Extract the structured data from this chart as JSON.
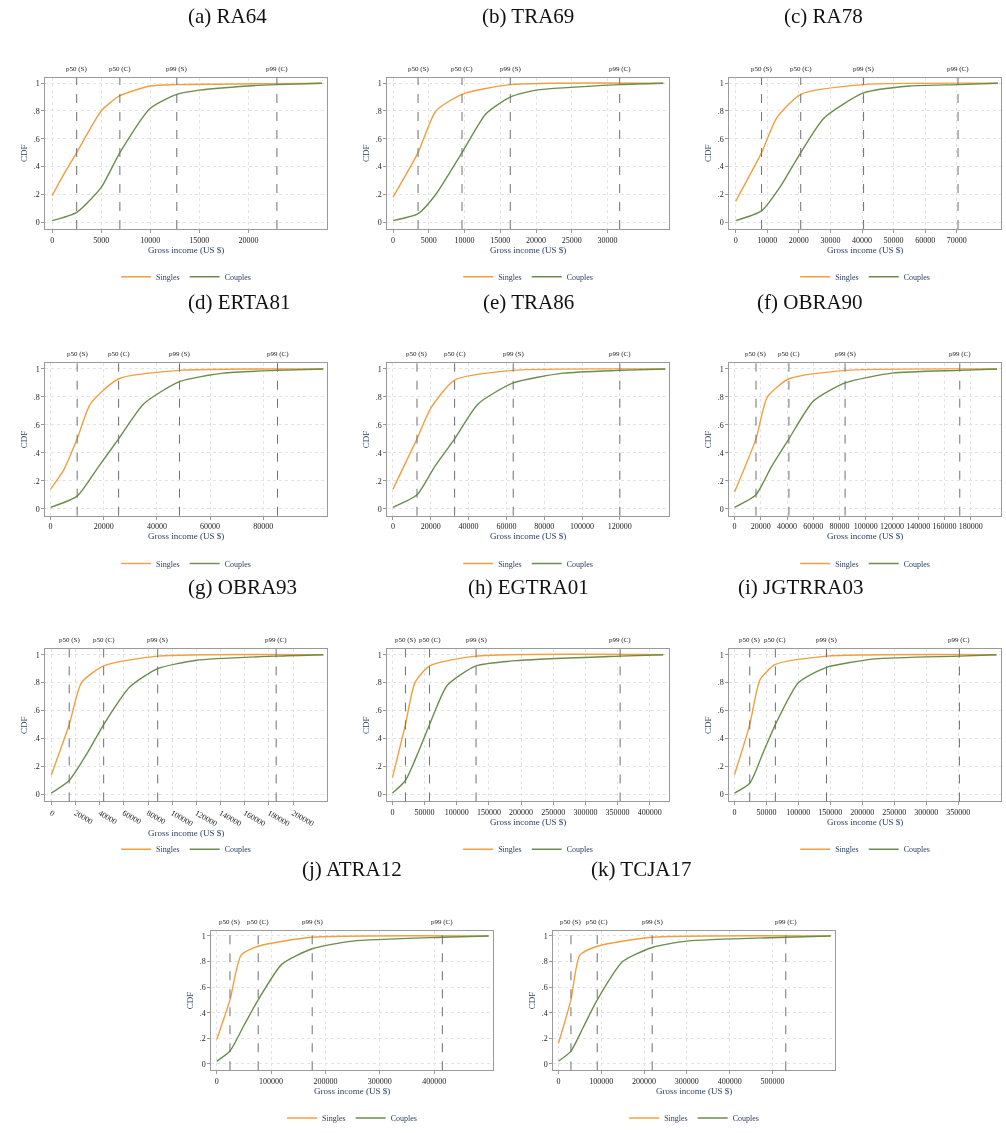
{
  "chart_data": [
    {
      "type": "line",
      "title": "(a) RA64",
      "xlabel": "Gross income (US $)",
      "ylabel": "CDF",
      "grid": true,
      "legend": "bottom",
      "xlim": [
        -700,
        28000
      ],
      "xticks": [
        0,
        5000,
        10000,
        15000,
        20000
      ],
      "ylim": [
        -0.05,
        1.04
      ],
      "yticks": [
        0,
        {
          "value": 0.2,
          "label": ".2"
        },
        {
          "value": 0.4,
          "label": ".4"
        },
        {
          "value": 0.6,
          "label": ".6"
        },
        {
          "value": 0.8,
          "label": ".8"
        },
        1
      ],
      "series": [
        {
          "name": "Singles",
          "color": "#f0a040",
          "x": [
            0,
            1000,
            2500,
            5000,
            6900,
            10000,
            12700,
            27500
          ],
          "values": [
            0.19,
            0.32,
            0.5,
            0.8,
            0.91,
            0.98,
            0.99,
            1
          ]
        },
        {
          "name": "Couples",
          "color": "#6b8e4e",
          "x": [
            0,
            2500,
            5000,
            6900,
            10000,
            12700,
            15000,
            20000,
            22900,
            27500
          ],
          "values": [
            0.01,
            0.07,
            0.25,
            0.5,
            0.82,
            0.92,
            0.95,
            0.98,
            0.99,
            1
          ]
        }
      ],
      "ref_lines": [
        {
          "axis": "x",
          "value": 2500,
          "label": "p50 (S)",
          "color": "#707070",
          "line_style": "dashed"
        },
        {
          "axis": "x",
          "value": 6900,
          "label": "p50 (C)",
          "color": "#707070",
          "line_style": "dashed"
        },
        {
          "axis": "x",
          "value": 12700,
          "label": "p99 (S)",
          "color": "#707070",
          "line_style": "dashed"
        },
        {
          "axis": "x",
          "value": 22900,
          "label": "p99 (C)",
          "color": "#707070",
          "line_style": "dashed"
        }
      ]
    },
    {
      "type": "line",
      "title": "(b) TRA69",
      "xlabel": "Gross income (US $)",
      "ylabel": "CDF",
      "grid": true,
      "legend": "bottom",
      "xlim": [
        -800,
        38600
      ],
      "xticks": [
        0,
        5000,
        10000,
        15000,
        20000,
        25000,
        30000
      ],
      "ylim": [
        -0.05,
        1.04
      ],
      "yticks": [
        0,
        {
          "value": 0.2,
          "label": ".2"
        },
        {
          "value": 0.4,
          "label": ".4"
        },
        {
          "value": 0.6,
          "label": ".6"
        },
        {
          "value": 0.8,
          "label": ".8"
        },
        1
      ],
      "series": [
        {
          "name": "Singles",
          "color": "#f0a040",
          "x": [
            0,
            3500,
            6000,
            9650,
            16400,
            37800
          ],
          "values": [
            0.18,
            0.5,
            0.8,
            0.92,
            0.99,
            1
          ]
        },
        {
          "name": "Couples",
          "color": "#6b8e4e",
          "x": [
            0,
            3500,
            6000,
            9650,
            13000,
            16400,
            20000,
            31700,
            37800
          ],
          "values": [
            0.01,
            0.06,
            0.2,
            0.5,
            0.78,
            0.9,
            0.95,
            0.99,
            1
          ]
        }
      ],
      "ref_lines": [
        {
          "axis": "x",
          "value": 3500,
          "label": "p50 (S)",
          "color": "#707070",
          "line_style": "dashed"
        },
        {
          "axis": "x",
          "value": 9650,
          "label": "p50 (C)",
          "color": "#707070",
          "line_style": "dashed"
        },
        {
          "axis": "x",
          "value": 16400,
          "label": "p99 (S)",
          "color": "#707070",
          "line_style": "dashed"
        },
        {
          "axis": "x",
          "value": 31700,
          "label": "p99 (C)",
          "color": "#707070",
          "line_style": "dashed"
        }
      ]
    },
    {
      "type": "line",
      "title": "(c) RA78",
      "xlabel": "Gross income (US $)",
      "ylabel": "CDF",
      "grid": true,
      "legend": "bottom",
      "xlim": [
        -2000,
        84000
      ],
      "xticks": [
        0,
        10000,
        20000,
        30000,
        40000,
        50000,
        60000,
        70000
      ],
      "ylim": [
        -0.05,
        1.04
      ],
      "yticks": [
        0,
        {
          "value": 0.2,
          "label": ".2"
        },
        {
          "value": 0.4,
          "label": ".4"
        },
        {
          "value": 0.6,
          "label": ".6"
        },
        {
          "value": 0.8,
          "label": ".8"
        },
        1
      ],
      "series": [
        {
          "name": "Singles",
          "color": "#f0a040",
          "x": [
            0,
            8200,
            13000,
            20600,
            40500,
            83000
          ],
          "values": [
            0.15,
            0.5,
            0.75,
            0.92,
            0.99,
            1
          ]
        },
        {
          "name": "Couples",
          "color": "#6b8e4e",
          "x": [
            0,
            8200,
            14000,
            20600,
            28000,
            40500,
            55000,
            70400,
            83000
          ],
          "values": [
            0.01,
            0.08,
            0.25,
            0.5,
            0.75,
            0.93,
            0.98,
            0.99,
            1
          ]
        }
      ],
      "ref_lines": [
        {
          "axis": "x",
          "value": 8200,
          "label": "p50 (S)",
          "color": "#707070",
          "line_style": "dashed"
        },
        {
          "axis": "x",
          "value": 20600,
          "label": "p50 (C)",
          "color": "#707070",
          "line_style": "dashed"
        },
        {
          "axis": "x",
          "value": 40500,
          "label": "p99 (S)",
          "color": "#707070",
          "line_style": "dashed"
        },
        {
          "axis": "x",
          "value": 70400,
          "label": "p99 (C)",
          "color": "#707070",
          "line_style": "dashed"
        }
      ]
    },
    {
      "type": "line",
      "title": "(d) ERTA81",
      "xlabel": "Gross income (US $)",
      "ylabel": "CDF",
      "grid": true,
      "legend": "bottom",
      "xlim": [
        -2000,
        104000
      ],
      "xticks": [
        0,
        20000,
        40000,
        60000,
        80000
      ],
      "ylim": [
        -0.05,
        1.04
      ],
      "yticks": [
        0,
        {
          "value": 0.2,
          "label": ".2"
        },
        {
          "value": 0.4,
          "label": ".4"
        },
        {
          "value": 0.6,
          "label": ".6"
        },
        {
          "value": 0.8,
          "label": ".8"
        },
        1
      ],
      "series": [
        {
          "name": "Singles",
          "color": "#f0a040",
          "x": [
            0,
            5000,
            10000,
            15000,
            25600,
            48500,
            102600
          ],
          "values": [
            0.14,
            0.28,
            0.5,
            0.75,
            0.93,
            0.99,
            1
          ]
        },
        {
          "name": "Couples",
          "color": "#6b8e4e",
          "x": [
            0,
            10000,
            18000,
            25600,
            35000,
            48500,
            65000,
            85400,
            102600
          ],
          "values": [
            0.01,
            0.09,
            0.3,
            0.5,
            0.75,
            0.91,
            0.97,
            0.99,
            1
          ]
        }
      ],
      "ref_lines": [
        {
          "axis": "x",
          "value": 10000,
          "label": "p50 (S)",
          "color": "#707070",
          "line_style": "dashed"
        },
        {
          "axis": "x",
          "value": 25600,
          "label": "p50 (C)",
          "color": "#707070",
          "line_style": "dashed"
        },
        {
          "axis": "x",
          "value": 48500,
          "label": "p99 (S)",
          "color": "#707070",
          "line_style": "dashed"
        },
        {
          "axis": "x",
          "value": 85400,
          "label": "p99 (C)",
          "color": "#707070",
          "line_style": "dashed"
        }
      ]
    },
    {
      "type": "line",
      "title": "(e) TRA86",
      "xlabel": "Gross income (US $)",
      "ylabel": "CDF",
      "grid": true,
      "legend": "bottom",
      "xlim": [
        -3000,
        146000
      ],
      "xticks": [
        0,
        20000,
        40000,
        60000,
        80000,
        100000,
        120000
      ],
      "ylim": [
        -0.05,
        1.04
      ],
      "yticks": [
        0,
        {
          "value": 0.2,
          "label": ".2"
        },
        {
          "value": 0.4,
          "label": ".4"
        },
        {
          "value": 0.6,
          "label": ".6"
        },
        {
          "value": 0.8,
          "label": ".8"
        },
        1
      ],
      "series": [
        {
          "name": "Singles",
          "color": "#f0a040",
          "x": [
            0,
            12700,
            20000,
            32600,
            63600,
            144000
          ],
          "values": [
            0.14,
            0.5,
            0.72,
            0.92,
            0.99,
            1
          ]
        },
        {
          "name": "Couples",
          "color": "#6b8e4e",
          "x": [
            0,
            12700,
            22000,
            32600,
            45000,
            63600,
            90000,
            120000,
            144000
          ],
          "values": [
            0.01,
            0.1,
            0.3,
            0.5,
            0.75,
            0.9,
            0.97,
            0.99,
            1
          ]
        }
      ],
      "ref_lines": [
        {
          "axis": "x",
          "value": 12700,
          "label": "p50 (S)",
          "color": "#707070",
          "line_style": "dashed"
        },
        {
          "axis": "x",
          "value": 32600,
          "label": "p50 (C)",
          "color": "#707070",
          "line_style": "dashed"
        },
        {
          "axis": "x",
          "value": 63600,
          "label": "p99 (S)",
          "color": "#707070",
          "line_style": "dashed"
        },
        {
          "axis": "x",
          "value": 120000,
          "label": "p99 (C)",
          "color": "#707070",
          "line_style": "dashed"
        }
      ]
    },
    {
      "type": "line",
      "title": "(f) OBRA90",
      "xlabel": "Gross income (US $)",
      "ylabel": "CDF",
      "grid": true,
      "legend": "bottom",
      "xlim": [
        -4000,
        203000
      ],
      "xticks": [
        0,
        20000,
        40000,
        60000,
        80000,
        100000,
        120000,
        140000,
        160000,
        180000
      ],
      "ylim": [
        -0.05,
        1.04
      ],
      "yticks": [
        0,
        {
          "value": 0.2,
          "label": ".2"
        },
        {
          "value": 0.4,
          "label": ".4"
        },
        {
          "value": 0.6,
          "label": ".6"
        },
        {
          "value": 0.8,
          "label": ".8"
        },
        1
      ],
      "series": [
        {
          "name": "Singles",
          "color": "#f0a040",
          "x": [
            0,
            16300,
            25000,
            41400,
            84200,
            200000
          ],
          "values": [
            0.12,
            0.5,
            0.8,
            0.93,
            0.99,
            1
          ]
        },
        {
          "name": "Couples",
          "color": "#6b8e4e",
          "x": [
            0,
            16300,
            28000,
            41400,
            60000,
            84200,
            120000,
            171600,
            200000
          ],
          "values": [
            0.01,
            0.1,
            0.3,
            0.5,
            0.77,
            0.9,
            0.97,
            0.99,
            1
          ]
        }
      ],
      "ref_lines": [
        {
          "axis": "x",
          "value": 16300,
          "label": "p50 (S)",
          "color": "#707070",
          "line_style": "dashed"
        },
        {
          "axis": "x",
          "value": 41400,
          "label": "p50 (C)",
          "color": "#707070",
          "line_style": "dashed"
        },
        {
          "axis": "x",
          "value": 84200,
          "label": "p99 (S)",
          "color": "#707070",
          "line_style": "dashed"
        },
        {
          "axis": "x",
          "value": 171600,
          "label": "p99 (C)",
          "color": "#707070",
          "line_style": "dashed"
        }
      ]
    },
    {
      "type": "line",
      "title": "(g) OBRA93",
      "xlabel": "Gross income (US $)",
      "ylabel": "CDF",
      "grid": true,
      "legend": "bottom",
      "xlim": [
        -5000,
        228000
      ],
      "xticks": [
        0,
        20000,
        40000,
        60000,
        80000,
        100000,
        120000,
        140000,
        160000,
        180000,
        200000
      ],
      "ylim": [
        -0.05,
        1.04
      ],
      "yticks": [
        0,
        {
          "value": 0.2,
          "label": ".2"
        },
        {
          "value": 0.4,
          "label": ".4"
        },
        {
          "value": 0.6,
          "label": ".6"
        },
        {
          "value": 0.8,
          "label": ".8"
        },
        1
      ],
      "series": [
        {
          "name": "Singles",
          "color": "#f0a040",
          "x": [
            0,
            14800,
            25000,
            43300,
            88000,
            225000
          ],
          "values": [
            0.14,
            0.5,
            0.8,
            0.92,
            0.99,
            1
          ]
        },
        {
          "name": "Couples",
          "color": "#6b8e4e",
          "x": [
            0,
            14800,
            30000,
            43300,
            65000,
            88000,
            120000,
            186000,
            225000
          ],
          "values": [
            0.01,
            0.1,
            0.3,
            0.5,
            0.77,
            0.9,
            0.96,
            0.99,
            1
          ]
        }
      ],
      "ref_lines": [
        {
          "axis": "x",
          "value": 14800,
          "label": "p50 (S)",
          "color": "#707070",
          "line_style": "dashed"
        },
        {
          "axis": "x",
          "value": 43300,
          "label": "p50 (C)",
          "color": "#707070",
          "line_style": "dashed"
        },
        {
          "axis": "x",
          "value": 88000,
          "label": "p99 (S)",
          "color": "#707070",
          "line_style": "dashed"
        },
        {
          "axis": "x",
          "value": 186000,
          "label": "p99 (C)",
          "color": "#707070",
          "line_style": "dashed"
        }
      ]
    },
    {
      "type": "line",
      "title": "(h) EGTRA01",
      "xlabel": "Gross income (US $)",
      "ylabel": "CDF",
      "grid": true,
      "legend": "bottom",
      "xlim": [
        -8000,
        430000
      ],
      "xticks": [
        0,
        50000,
        100000,
        150000,
        200000,
        250000,
        300000,
        350000,
        400000
      ],
      "ylim": [
        -0.05,
        1.04
      ],
      "yticks": [
        0,
        {
          "value": 0.2,
          "label": ".2"
        },
        {
          "value": 0.4,
          "label": ".4"
        },
        {
          "value": 0.6,
          "label": ".6"
        },
        {
          "value": 0.8,
          "label": ".8"
        },
        1
      ],
      "series": [
        {
          "name": "Singles",
          "color": "#f0a040",
          "x": [
            0,
            20200,
            35000,
            57700,
            130000,
            421000
          ],
          "values": [
            0.12,
            0.5,
            0.8,
            0.92,
            0.99,
            1
          ]
        },
        {
          "name": "Couples",
          "color": "#6b8e4e",
          "x": [
            0,
            20200,
            40000,
            57700,
            85000,
            130000,
            200000,
            354000,
            421000
          ],
          "values": [
            0.01,
            0.1,
            0.3,
            0.5,
            0.78,
            0.92,
            0.96,
            0.99,
            1
          ]
        }
      ],
      "ref_lines": [
        {
          "axis": "x",
          "value": 20200,
          "label": "p50 (S)",
          "color": "#707070",
          "line_style": "dashed"
        },
        {
          "axis": "x",
          "value": 57700,
          "label": "p50 (C)",
          "color": "#707070",
          "line_style": "dashed"
        },
        {
          "axis": "x",
          "value": 130000,
          "label": "p99 (S)",
          "color": "#707070",
          "line_style": "dashed"
        },
        {
          "axis": "x",
          "value": 354000,
          "label": "p99 (C)",
          "color": "#707070",
          "line_style": "dashed"
        }
      ]
    },
    {
      "type": "line",
      "title": "(i) JGTRRA03",
      "xlabel": "Gross income (US $)",
      "ylabel": "CDF",
      "grid": true,
      "legend": "bottom",
      "xlim": [
        -8000,
        417000
      ],
      "xticks": [
        0,
        50000,
        100000,
        150000,
        200000,
        250000,
        300000,
        350000
      ],
      "ylim": [
        -0.05,
        1.04
      ],
      "yticks": [
        0,
        {
          "value": 0.2,
          "label": ".2"
        },
        {
          "value": 0.4,
          "label": ".4"
        },
        {
          "value": 0.6,
          "label": ".6"
        },
        {
          "value": 0.8,
          "label": ".8"
        },
        1
      ],
      "series": [
        {
          "name": "Singles",
          "color": "#f0a040",
          "x": [
            0,
            23900,
            40000,
            64000,
            144000,
            410000
          ],
          "values": [
            0.14,
            0.5,
            0.82,
            0.93,
            0.99,
            1
          ]
        },
        {
          "name": "Couples",
          "color": "#6b8e4e",
          "x": [
            0,
            23900,
            45000,
            64000,
            100000,
            144000,
            220000,
            352000,
            410000
          ],
          "values": [
            0.01,
            0.08,
            0.3,
            0.5,
            0.8,
            0.91,
            0.97,
            0.99,
            1
          ]
        }
      ],
      "ref_lines": [
        {
          "axis": "x",
          "value": 23900,
          "label": "p50 (S)",
          "color": "#707070",
          "line_style": "dashed"
        },
        {
          "axis": "x",
          "value": 64000,
          "label": "p50 (C)",
          "color": "#707070",
          "line_style": "dashed"
        },
        {
          "axis": "x",
          "value": 144000,
          "label": "p99 (S)",
          "color": "#707070",
          "line_style": "dashed"
        },
        {
          "axis": "x",
          "value": 352000,
          "label": "p99 (C)",
          "color": "#707070",
          "line_style": "dashed"
        }
      ]
    },
    {
      "type": "line",
      "title": "(j) ATRA12",
      "xlabel": "Gross income (US $)",
      "ylabel": "CDF",
      "grid": true,
      "legend": "bottom",
      "xlim": [
        -10000,
        508000
      ],
      "xticks": [
        0,
        100000,
        200000,
        300000,
        400000
      ],
      "ylim": [
        -0.05,
        1.04
      ],
      "yticks": [
        0,
        {
          "value": 0.2,
          "label": ".2"
        },
        {
          "value": 0.4,
          "label": ".4"
        },
        {
          "value": 0.6,
          "label": ".6"
        },
        {
          "value": 0.8,
          "label": ".8"
        },
        1
      ],
      "series": [
        {
          "name": "Singles",
          "color": "#f0a040",
          "x": [
            0,
            24400,
            45000,
            76300,
            175600,
            500000
          ],
          "values": [
            0.19,
            0.5,
            0.85,
            0.92,
            0.99,
            1
          ]
        },
        {
          "name": "Couples",
          "color": "#6b8e4e",
          "x": [
            0,
            24400,
            50000,
            76300,
            120000,
            175600,
            250000,
            415000,
            500000
          ],
          "values": [
            0.02,
            0.1,
            0.3,
            0.5,
            0.78,
            0.9,
            0.96,
            0.99,
            1
          ]
        }
      ],
      "ref_lines": [
        {
          "axis": "x",
          "value": 24400,
          "label": "p50 (S)",
          "color": "#707070",
          "line_style": "dashed"
        },
        {
          "axis": "x",
          "value": 76300,
          "label": "p50 (C)",
          "color": "#707070",
          "line_style": "dashed"
        },
        {
          "axis": "x",
          "value": 175600,
          "label": "p99 (S)",
          "color": "#707070",
          "line_style": "dashed"
        },
        {
          "axis": "x",
          "value": 415000,
          "label": "p99 (C)",
          "color": "#707070",
          "line_style": "dashed"
        }
      ]
    },
    {
      "type": "line",
      "title": "(k) TCJA17",
      "xlabel": "Gross income (US $)",
      "ylabel": "CDF",
      "grid": true,
      "legend": "bottom",
      "xlim": [
        -12000,
        646000
      ],
      "xticks": [
        0,
        100000,
        200000,
        300000,
        400000,
        500000
      ],
      "ylim": [
        -0.05,
        1.04
      ],
      "yticks": [
        0,
        {
          "value": 0.2,
          "label": ".2"
        },
        {
          "value": 0.4,
          "label": ".4"
        },
        {
          "value": 0.6,
          "label": ".6"
        },
        {
          "value": 0.8,
          "label": ".8"
        },
        1
      ],
      "series": [
        {
          "name": "Singles",
          "color": "#f0a040",
          "x": [
            0,
            29200,
            50000,
            90600,
            219000,
            636000
          ],
          "values": [
            0.16,
            0.5,
            0.85,
            0.92,
            0.99,
            1
          ]
        },
        {
          "name": "Couples",
          "color": "#6b8e4e",
          "x": [
            0,
            29200,
            60000,
            90600,
            150000,
            219000,
            300000,
            531000,
            636000
          ],
          "values": [
            0.02,
            0.1,
            0.3,
            0.5,
            0.8,
            0.91,
            0.96,
            0.99,
            1
          ]
        }
      ],
      "ref_lines": [
        {
          "axis": "x",
          "value": 29200,
          "label": "p50 (S)",
          "color": "#707070",
          "line_style": "dashed"
        },
        {
          "axis": "x",
          "value": 90600,
          "label": "p50 (C)",
          "color": "#707070",
          "line_style": "dashed"
        },
        {
          "axis": "x",
          "value": 219000,
          "label": "p99 (S)",
          "color": "#707070",
          "line_style": "dashed"
        },
        {
          "axis": "x",
          "value": 531000,
          "label": "p99 (C)",
          "color": "#707070",
          "line_style": "dashed"
        }
      ]
    }
  ]
}
